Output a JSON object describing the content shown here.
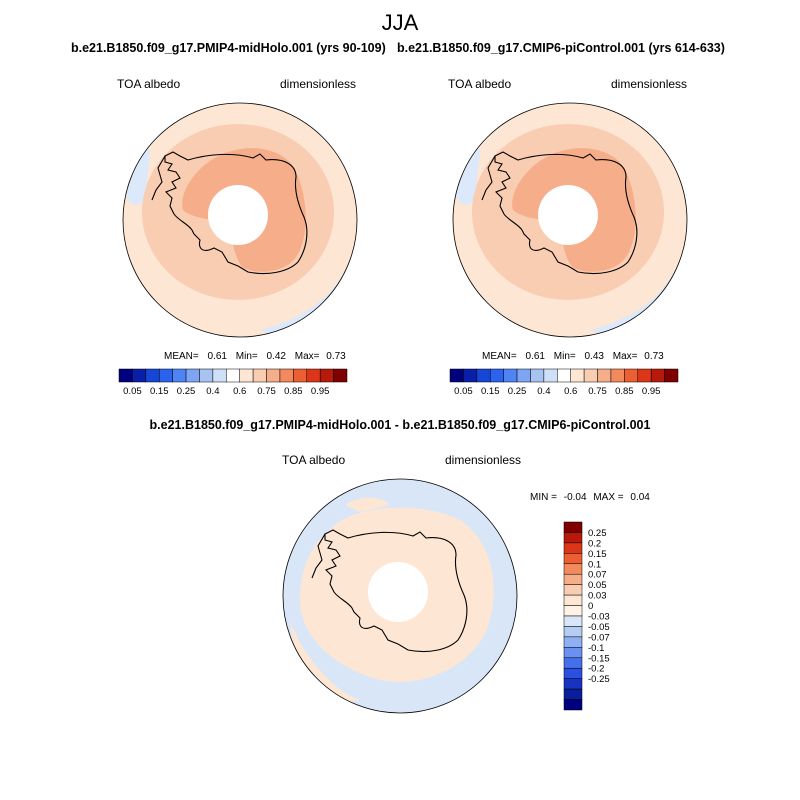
{
  "season": "JJA",
  "panels": [
    {
      "title": "b.e21.B1850.f09_g17.PMIP4-midHolo.001 (yrs 90-109)",
      "left_label": "TOA albedo",
      "right_label": "dimensionless",
      "stats": {
        "mean_label": "MEAN=",
        "mean": "0.61",
        "min_label": "Min=",
        "min": "0.42",
        "max_label": "Max=",
        "max": "0.73"
      }
    },
    {
      "title": "b.e21.B1850.f09_g17.CMIP6-piControl.001 (yrs 614-633)",
      "left_label": "TOA albedo",
      "right_label": "dimensionless",
      "stats": {
        "mean_label": "MEAN=",
        "mean": "0.61",
        "min_label": "Min=",
        "min": "0.43",
        "max_label": "Max=",
        "max": "0.73"
      }
    }
  ],
  "abs_colorbar": {
    "colors": [
      "#00007f",
      "#0a1fa8",
      "#1646d6",
      "#2b63ee",
      "#4f84f5",
      "#7ea5f4",
      "#a8c3f2",
      "#cde0f8",
      "#ffffff",
      "#fde6d4",
      "#f9cdb2",
      "#f6ae8a",
      "#f38a5e",
      "#ec5f33",
      "#dc3517",
      "#b71a0a",
      "#7e0000"
    ],
    "tick_labels": [
      "0.05",
      "0.15",
      "0.25",
      "0.4",
      "0.6",
      "0.75",
      "0.85",
      "0.95"
    ]
  },
  "diff_panel": {
    "title": "b.e21.B1850.f09_g17.PMIP4-midHolo.001 - b.e21.B1850.f09_g17.CMIP6-piControl.001",
    "left_label": "TOA albedo",
    "right_label": "dimensionless",
    "stats": {
      "min_label": "MIN =",
      "min": "-0.04",
      "max_label": "MAX =",
      "max": "0.04"
    }
  },
  "diff_colorbar": {
    "colors": [
      "#7e0000",
      "#b71a0a",
      "#dc3517",
      "#ec5f33",
      "#f38a5e",
      "#f6ae8a",
      "#f9cdb2",
      "#fde6d4",
      "#fff2e6",
      "#d8e6f8",
      "#b6cdf3",
      "#8fb0f3",
      "#6a90f1",
      "#4570ea",
      "#2b4fe0",
      "#1633c2",
      "#0a1d9c",
      "#00007f"
    ],
    "tick_labels": [
      "0.25",
      "0.2",
      "0.15",
      "0.1",
      "0.07",
      "0.05",
      "0.03",
      "0",
      "-0.03",
      "-0.05",
      "-0.07",
      "-0.1",
      "-0.15",
      "-0.2",
      "-0.25"
    ]
  },
  "map_colors": {
    "ocean_blue": "#dbe9fa",
    "ocean_pale": "#fde6d4",
    "ring": "#f9cdb2",
    "interior_high": "#f6ae8a",
    "pole_hole": "#ffffff",
    "diff_blue": "#d8e6f8",
    "diff_pale": "#fde6d4",
    "coast": "#000000"
  }
}
